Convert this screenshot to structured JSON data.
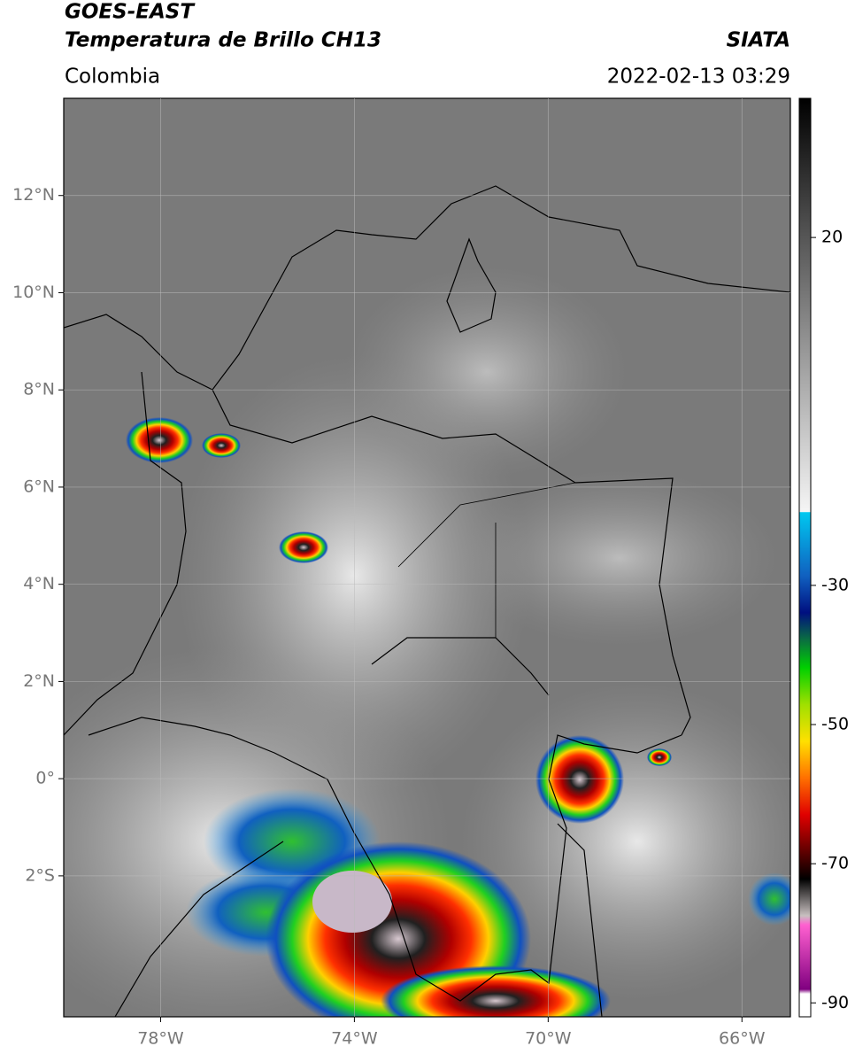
{
  "map": {
    "title": "GOES-EAST",
    "subtitle": "Temperatura de Brillo CH13",
    "source": "SIATA",
    "region": "Colombia",
    "datetime": "2022-02-13 03:29",
    "xlim": [
      -80,
      -65
    ],
    "ylim": [
      -4.9,
      14
    ],
    "xticks": [
      {
        "value": -78,
        "label": "78°W"
      },
      {
        "value": -74,
        "label": "74°W"
      },
      {
        "value": -70,
        "label": "70°W"
      },
      {
        "value": -66,
        "label": "66°W"
      }
    ],
    "yticks": [
      {
        "value": 12,
        "label": "12°N"
      },
      {
        "value": 10,
        "label": "10°N"
      },
      {
        "value": 8,
        "label": "8°N"
      },
      {
        "value": 6,
        "label": "6°N"
      },
      {
        "value": 4,
        "label": "4°N"
      },
      {
        "value": 2,
        "label": "2°N"
      },
      {
        "value": 0,
        "label": "0°"
      },
      {
        "value": -2,
        "label": "2°S"
      }
    ],
    "colorbar": {
      "lim": [
        40,
        -92
      ],
      "ticks": [
        20,
        -30,
        -50,
        -70,
        -90
      ]
    },
    "grid": true
  }
}
